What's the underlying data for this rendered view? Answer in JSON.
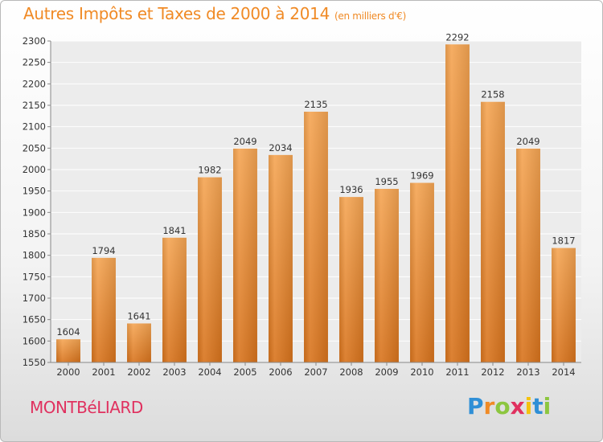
{
  "header": {
    "title": "Autres Impôts et Taxes de 2000 à 2014",
    "unit": "(en milliers d'€)"
  },
  "footer": {
    "city": "MONTBéLIARD",
    "logo_text": "Proxiti",
    "logo_letter_colors": [
      "#2f8fd6",
      "#f08a25",
      "#8cc63f",
      "#e0315f",
      "#f4c20d",
      "#2f8fd6",
      "#8cc63f"
    ]
  },
  "chart_data": {
    "type": "bar",
    "title": "Autres Impôts et Taxes de 2000 à 2014",
    "ylabel": "",
    "xlabel": "",
    "categories": [
      "2000",
      "2001",
      "2002",
      "2003",
      "2004",
      "2005",
      "2006",
      "2007",
      "2008",
      "2009",
      "2010",
      "2011",
      "2012",
      "2013",
      "2014"
    ],
    "values": [
      1604,
      1794,
      1641,
      1841,
      1982,
      2049,
      2034,
      2135,
      1936,
      1955,
      1969,
      2292,
      2158,
      2049,
      1817
    ],
    "ylim": [
      1550,
      2300
    ],
    "yticks": [
      1550,
      1600,
      1650,
      1700,
      1750,
      1800,
      1850,
      1900,
      1950,
      2000,
      2050,
      2100,
      2150,
      2200,
      2250,
      2300
    ],
    "grid": true,
    "bar_color": "#f08a25"
  }
}
